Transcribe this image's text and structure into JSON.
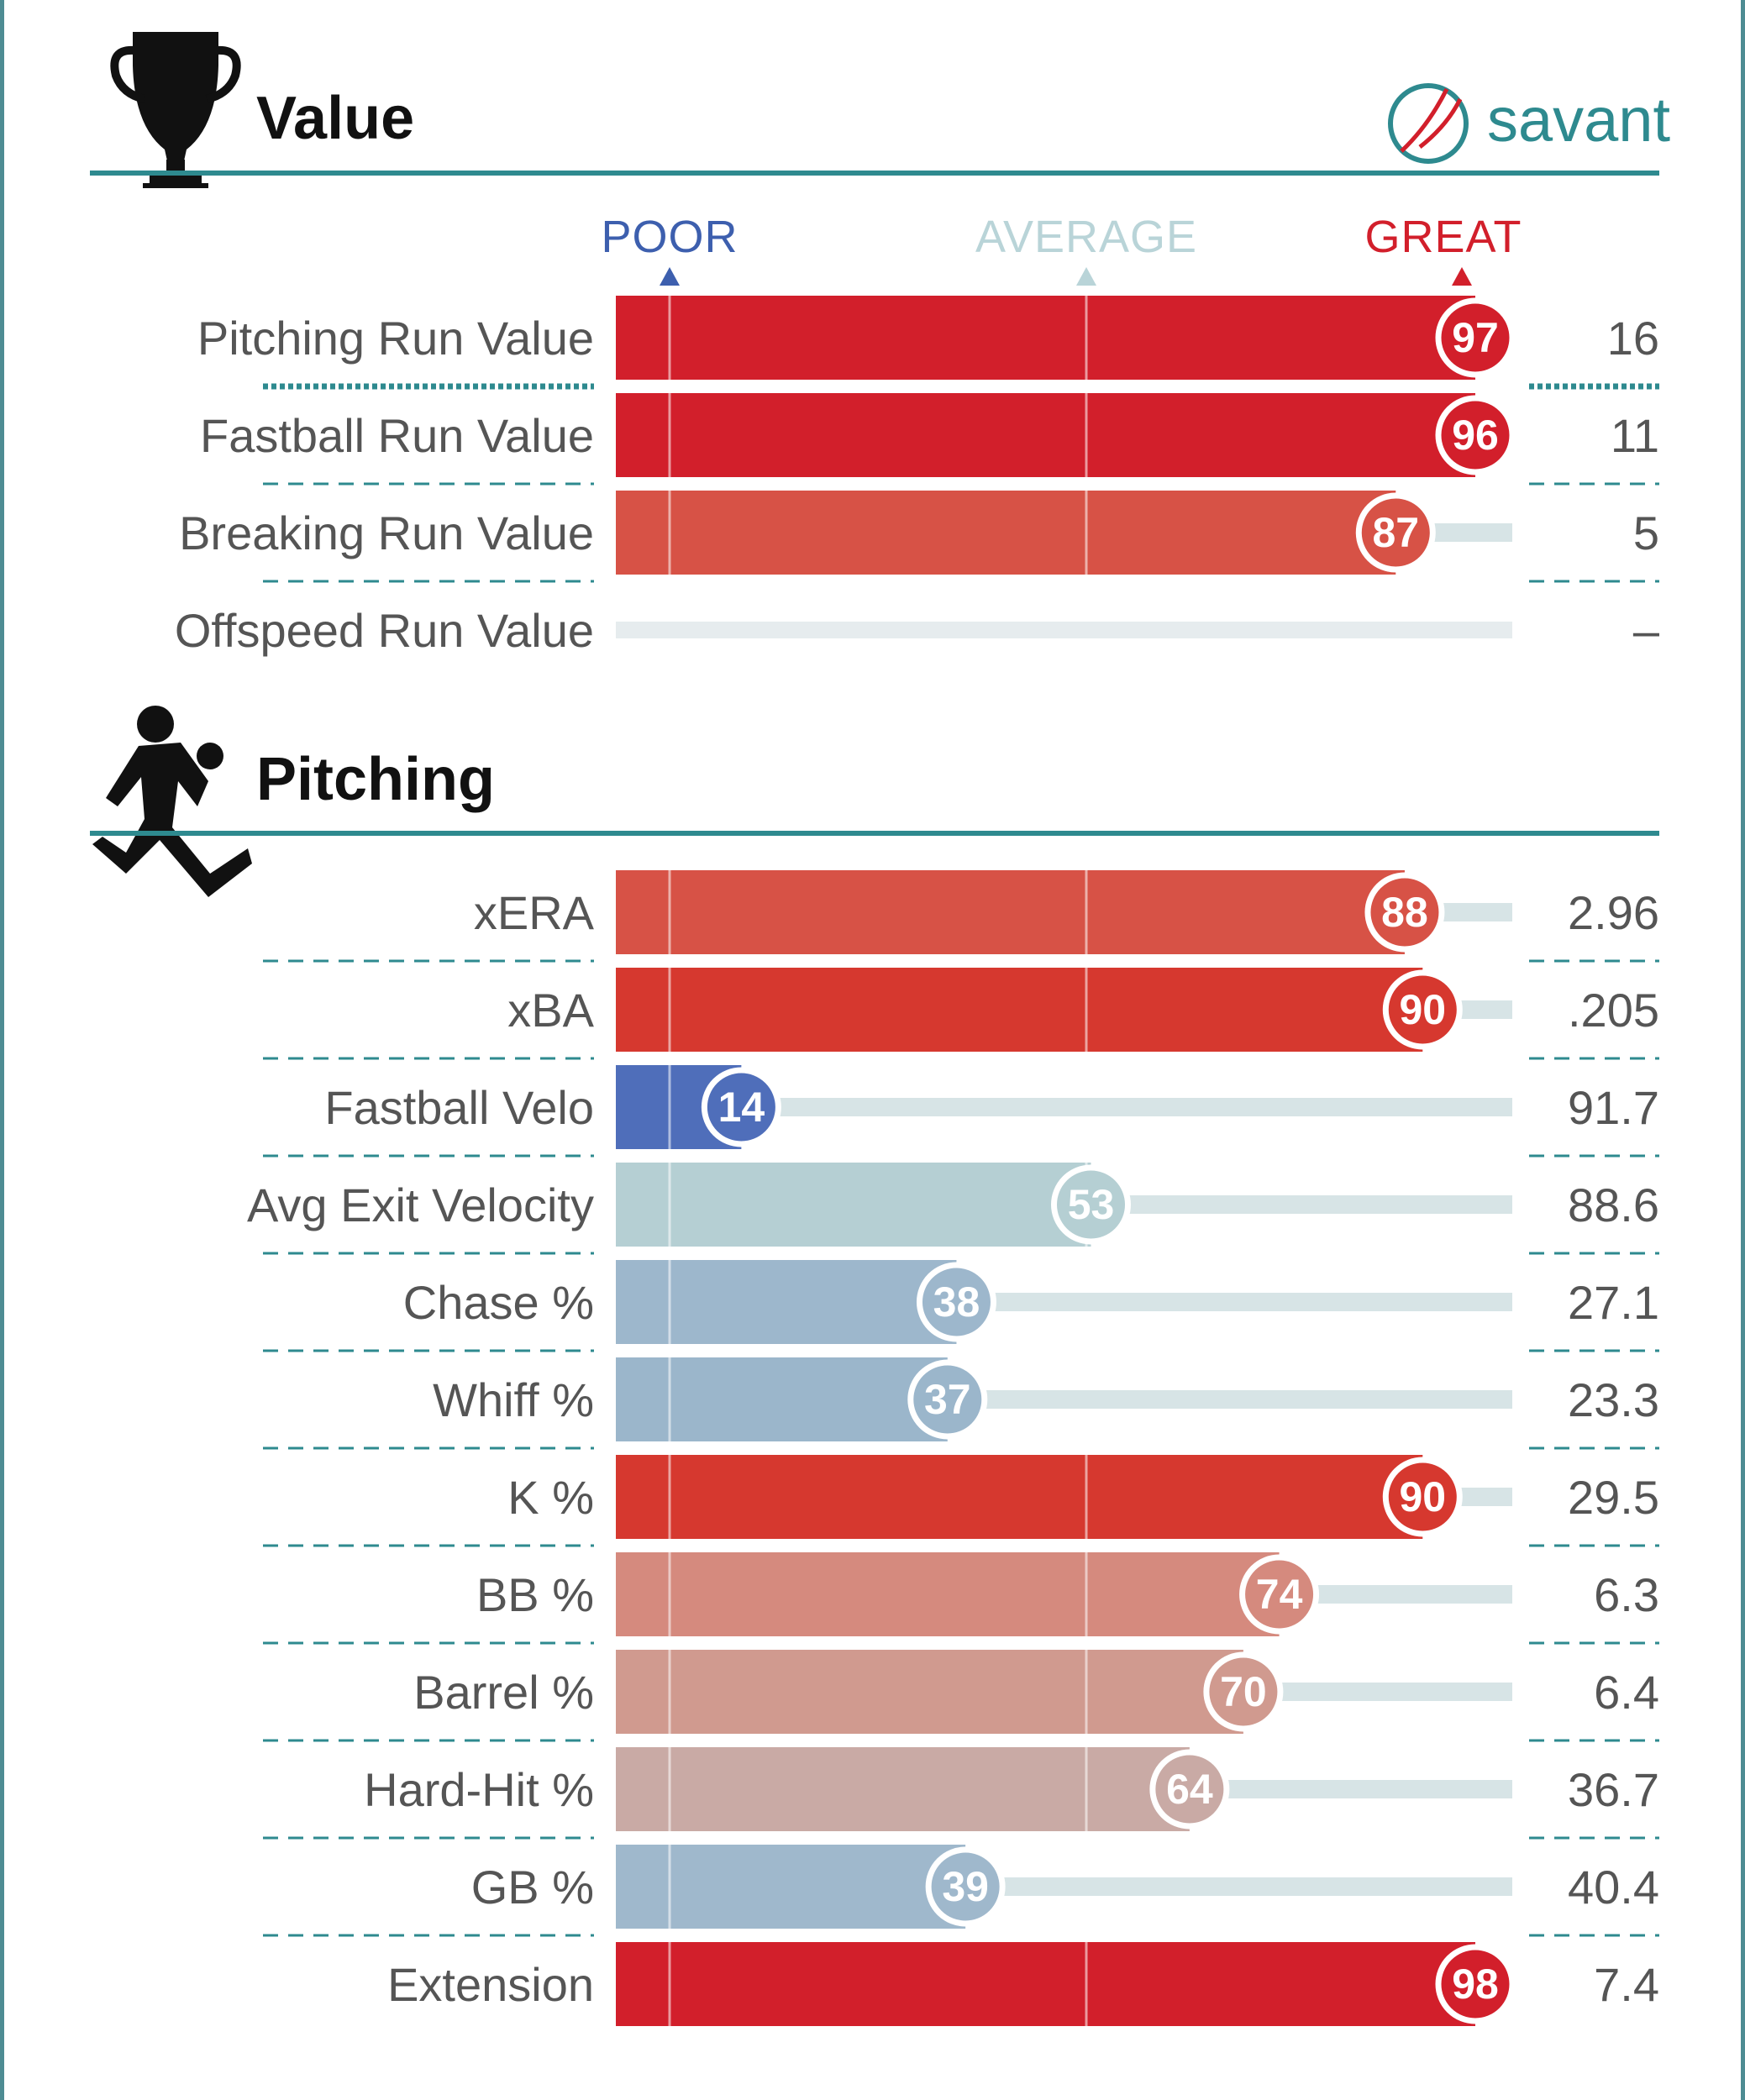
{
  "sections": {
    "value": {
      "title": "Value",
      "icon": "trophy-icon"
    },
    "pitching": {
      "title": "Pitching",
      "icon": "pitcher-icon"
    }
  },
  "brand": {
    "name": "savant",
    "icon": "baseball-icon"
  },
  "scale": {
    "poor": "POOR",
    "average": "AVERAGE",
    "great": "GREAT"
  },
  "colors": {
    "accent": "#2e8a8f",
    "poor": "#3d5fae",
    "average": "#b9d4d8",
    "great": "#d21f2b",
    "track": "#e6ecee"
  },
  "chart_data": {
    "type": "bar",
    "orientation": "horizontal",
    "xlim": [
      0,
      100
    ],
    "groups": [
      {
        "title": "Value",
        "rows": [
          {
            "label": "Pitching Run Value",
            "percentile": 97,
            "value": "16",
            "color": "#d21f2b"
          },
          {
            "label": "Fastball Run Value",
            "percentile": 96,
            "value": "11",
            "color": "#d21f2b"
          },
          {
            "label": "Breaking Run Value",
            "percentile": 87,
            "value": "5",
            "color": "#d75246"
          },
          {
            "label": "Offspeed Run Value",
            "percentile": null,
            "value": "–",
            "color": "#e9eef0"
          }
        ]
      },
      {
        "title": "Pitching",
        "rows": [
          {
            "label": "xERA",
            "percentile": 88,
            "value": "2.96",
            "color": "#d75246"
          },
          {
            "label": "xBA",
            "percentile": 90,
            "value": ".205",
            "color": "#d6382f"
          },
          {
            "label": "Fastball Velo",
            "percentile": 14,
            "value": "91.7",
            "color": "#4f6eba"
          },
          {
            "label": "Avg Exit Velocity",
            "percentile": 53,
            "value": "88.6",
            "color": "#b5cfd3"
          },
          {
            "label": "Chase %",
            "percentile": 38,
            "value": "27.1",
            "color": "#9db7cc"
          },
          {
            "label": "Whiff %",
            "percentile": 37,
            "value": "23.3",
            "color": "#9bb6cb"
          },
          {
            "label": "K %",
            "percentile": 90,
            "value": "29.5",
            "color": "#d6382f"
          },
          {
            "label": "BB %",
            "percentile": 74,
            "value": "6.3",
            "color": "#d58a7e"
          },
          {
            "label": "Barrel %",
            "percentile": 70,
            "value": "6.4",
            "color": "#d09a8f"
          },
          {
            "label": "Hard-Hit %",
            "percentile": 64,
            "value": "36.7",
            "color": "#c9aaa5"
          },
          {
            "label": "GB %",
            "percentile": 39,
            "value": "40.4",
            "color": "#9fb8cc"
          },
          {
            "label": "Extension",
            "percentile": 98,
            "value": "7.4",
            "color": "#d21f2b"
          }
        ]
      }
    ]
  }
}
